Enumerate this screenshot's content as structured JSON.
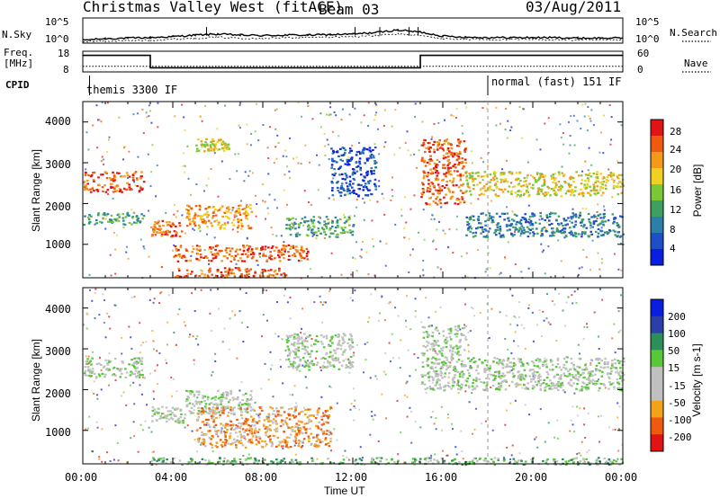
{
  "header": {
    "title": "Christmas Valley West (fitACF)",
    "beam": "Beam 03",
    "date": "03/Aug/2011"
  },
  "top_panel": {
    "nsky_label": "N.Sky",
    "nsearch_label": "N.Search",
    "ytick_hi": "10^5",
    "ytick_lo": "10^0",
    "ytick_hi_r": "10^5",
    "ytick_lo_r": "10^0"
  },
  "freq_panel": {
    "label_line1": "Freq.",
    "label_line2": "[MHz]",
    "ytick_18": "18",
    "ytick_8": "8",
    "nave_label": "Nave",
    "ytick_60": "60",
    "ytick_0": "0"
  },
  "cpid": {
    "label": "CPID",
    "mode1": "themis 3300 IF",
    "mode2": "normal (fast) 151 IF"
  },
  "power_panel": {
    "ylabel": "Slant Range [km]",
    "colorbar_label": "Power [dB]",
    "colorbar_ticks": [
      "28",
      "24",
      "20",
      "16",
      "12",
      "8",
      "4"
    ],
    "yticks": [
      "4000",
      "3000",
      "2000",
      "1000"
    ]
  },
  "velocity_panel": {
    "ylabel": "Slant Range [km]",
    "colorbar_label": "Velocity [m s-1]",
    "colorbar_ticks": [
      "200",
      "100",
      "50",
      "15",
      "-15",
      "-50",
      "-100",
      "-200"
    ],
    "yticks": [
      "4000",
      "3000",
      "2000",
      "1000"
    ]
  },
  "xaxis": {
    "label": "Time UT",
    "ticks": [
      "00:00",
      "04:00",
      "08:00",
      "12:00",
      "16:00",
      "20:00",
      "00:00"
    ]
  },
  "colors": {
    "power": [
      "#0a1ee0",
      "#1f4fc8",
      "#2c7fa8",
      "#3f9f60",
      "#7ac83a",
      "#f0d020",
      "#f39a1a",
      "#f05a10",
      "#e01414"
    ],
    "velocity": [
      "#e01414",
      "#f05a10",
      "#f3a31a",
      "#c0c0c0",
      "#c0c0c0",
      "#58c83a",
      "#2c8f5a",
      "#2c3fa8",
      "#0a1ee0"
    ]
  },
  "chart_data": [
    {
      "type": "line",
      "title": "N.Sky / N.Search",
      "x_hours": [
        0,
        1,
        2,
        3,
        4,
        5,
        6,
        7,
        8,
        9,
        10,
        11,
        12,
        13,
        14,
        15,
        16,
        17,
        18,
        19,
        20,
        21,
        22,
        23,
        24
      ],
      "series": [
        {
          "name": "N.Sky",
          "values_log10": [
            0.6,
            0.9,
            1.0,
            1.1,
            1.3,
            1.6,
            1.8,
            1.6,
            1.5,
            1.6,
            1.6,
            1.7,
            1.8,
            2.1,
            2.6,
            2.2,
            1.4,
            1.2,
            1.1,
            1.1,
            1.1,
            1.1,
            1.0,
            1.0,
            1.0
          ]
        },
        {
          "name": "N.Search",
          "values_log10": [
            0.3,
            0.4,
            0.5,
            0.6,
            0.8,
            1.0,
            1.2,
            1.0,
            1.0,
            1.1,
            1.1,
            1.2,
            1.3,
            1.5,
            1.8,
            1.5,
            0.9,
            0.8,
            0.7,
            0.7,
            0.7,
            0.7,
            0.6,
            0.6,
            0.6
          ]
        }
      ],
      "ylim_log10": [
        0,
        5
      ]
    },
    {
      "type": "line",
      "title": "Freq / Nave",
      "x_hours": [
        0,
        3.0,
        3.0,
        15.0,
        15.0,
        24
      ],
      "series": [
        {
          "name": "Freq",
          "values": [
            16,
            16,
            10,
            10,
            16,
            16
          ]
        },
        {
          "name": "Nave",
          "values": [
            12,
            12,
            12,
            12,
            12,
            12
          ]
        }
      ],
      "ylim": [
        8,
        18
      ]
    },
    {
      "type": "heatmap",
      "title": "Power",
      "xlim_hours": [
        0,
        24
      ],
      "ylim_km": [
        180,
        4500
      ],
      "colorbar_range_db": [
        0,
        30
      ],
      "features": [
        {
          "t0": 0.0,
          "t1": 2.7,
          "r0": 2300,
          "r1": 2800,
          "level": 7
        },
        {
          "t0": 0.0,
          "t1": 2.7,
          "r0": 1500,
          "r1": 1800,
          "level": 3
        },
        {
          "t0": 3.0,
          "t1": 4.5,
          "r0": 1200,
          "r1": 1600,
          "level": 7
        },
        {
          "t0": 4.5,
          "t1": 7.5,
          "r0": 1400,
          "r1": 2000,
          "level": 6
        },
        {
          "t0": 5.0,
          "t1": 6.5,
          "r0": 3300,
          "r1": 3600,
          "level": 5
        },
        {
          "t0": 4.0,
          "t1": 10.0,
          "r0": 600,
          "r1": 1000,
          "level": 7
        },
        {
          "t0": 9.0,
          "t1": 12.0,
          "r0": 1200,
          "r1": 1700,
          "level": 3
        },
        {
          "t0": 11.0,
          "t1": 13.0,
          "r0": 2200,
          "r1": 3400,
          "level": 1
        },
        {
          "t0": 15.0,
          "t1": 17.0,
          "r0": 2000,
          "r1": 3600,
          "level": 7
        },
        {
          "t0": 17.0,
          "t1": 24.0,
          "r0": 2200,
          "r1": 2800,
          "level": 5
        },
        {
          "t0": 17.0,
          "t1": 24.0,
          "r0": 1200,
          "r1": 1800,
          "level": 2
        },
        {
          "t0": 4.0,
          "t1": 9.0,
          "r0": 200,
          "r1": 450,
          "level": 7
        }
      ]
    },
    {
      "type": "heatmap",
      "title": "Velocity",
      "xlim_hours": [
        0,
        24
      ],
      "ylim_km": [
        180,
        4500
      ],
      "colorbar_range": [
        -200,
        200
      ],
      "features": [
        {
          "t0": 0.0,
          "t1": 2.7,
          "r0": 2300,
          "r1": 2800,
          "level": 4
        },
        {
          "t0": 3.0,
          "t1": 4.5,
          "r0": 1200,
          "r1": 1600,
          "level": 4
        },
        {
          "t0": 4.5,
          "t1": 7.5,
          "r0": 1400,
          "r1": 2000,
          "level": 4
        },
        {
          "t0": 5.0,
          "t1": 11.0,
          "r0": 600,
          "r1": 1600,
          "level": 2
        },
        {
          "t0": 9.0,
          "t1": 12.0,
          "r0": 2500,
          "r1": 3400,
          "level": 4
        },
        {
          "t0": 15.0,
          "t1": 17.0,
          "r0": 2000,
          "r1": 3600,
          "level": 4
        },
        {
          "t0": 17.0,
          "t1": 24.0,
          "r0": 2000,
          "r1": 2800,
          "level": 4
        },
        {
          "t0": 3.0,
          "t1": 24.0,
          "r0": 180,
          "r1": 350,
          "level": 5
        }
      ]
    }
  ]
}
